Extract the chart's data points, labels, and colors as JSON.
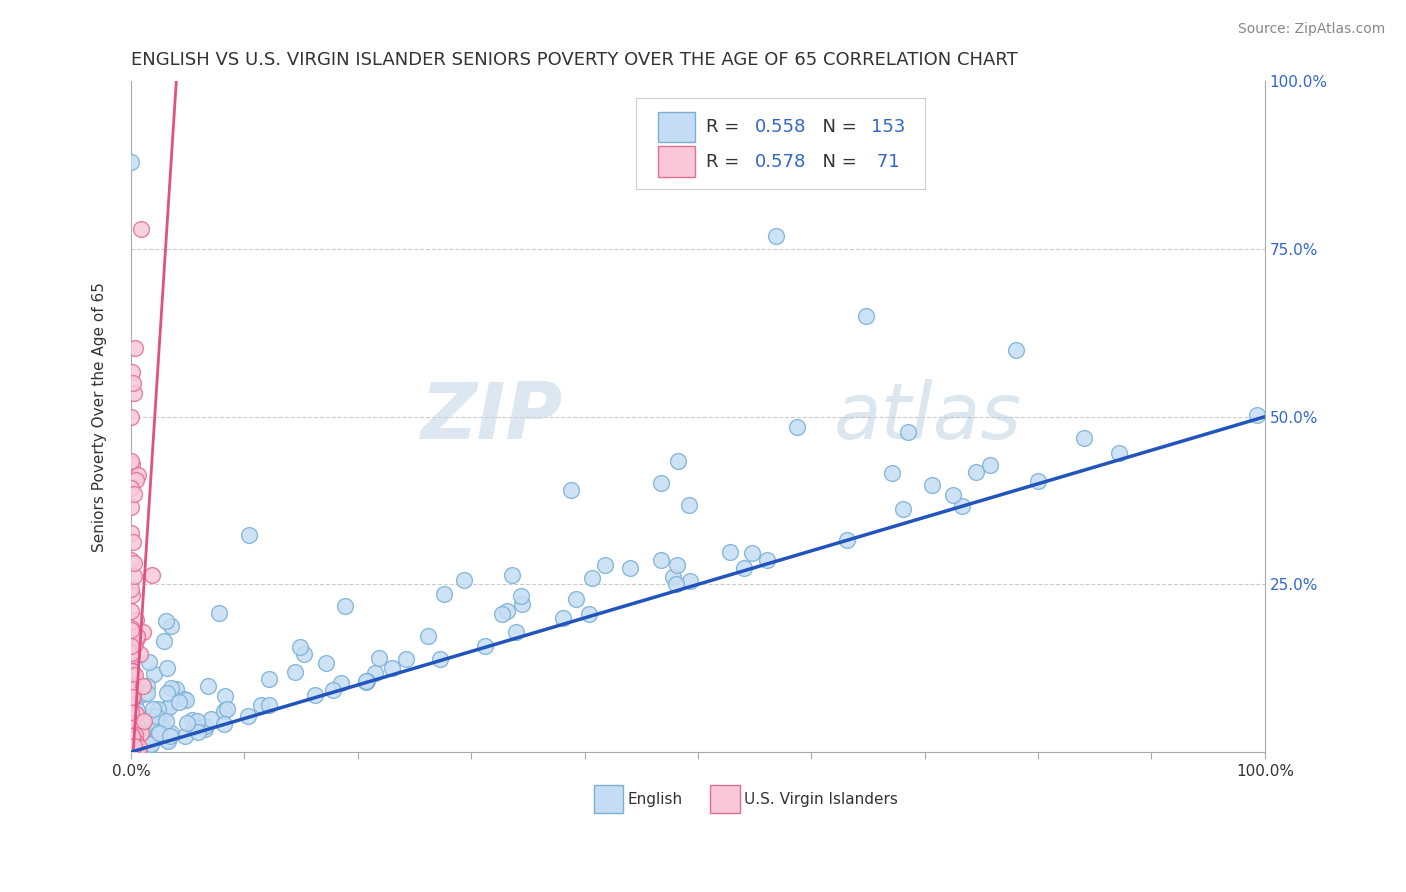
{
  "title": "ENGLISH VS U.S. VIRGIN ISLANDER SENIORS POVERTY OVER THE AGE OF 65 CORRELATION CHART",
  "source": "Source: ZipAtlas.com",
  "ylabel": "Seniors Poverty Over the Age of 65",
  "xmin": 0.0,
  "xmax": 1.0,
  "ymin": 0.0,
  "ymax": 1.0,
  "english_color": "#c5ddf4",
  "english_edge_color": "#7aafd4",
  "virgin_color": "#f9c8d8",
  "virgin_edge_color": "#e07090",
  "blue_line_color": "#2255bb",
  "pink_line_color": "#e05080",
  "watermark_zip_color": "#b0c8dc",
  "watermark_atlas_color": "#90b8d0",
  "title_fontsize": 13,
  "axis_label_fontsize": 11,
  "tick_fontsize": 11,
  "source_fontsize": 10,
  "r_english": 0.558,
  "n_english": 153,
  "r_virgin": 0.578,
  "n_virgin": 71,
  "english_label": "English",
  "virgin_label": "U.S. Virgin Islanders",
  "blue_trendline_x0": 0.0,
  "blue_trendline_y0": 0.0,
  "blue_trendline_x1": 1.0,
  "blue_trendline_y1": 0.5,
  "pink_trendline_x0": 0.002,
  "pink_trendline_y0": 0.0,
  "pink_trendline_x1": 0.04,
  "pink_trendline_y1": 1.0
}
